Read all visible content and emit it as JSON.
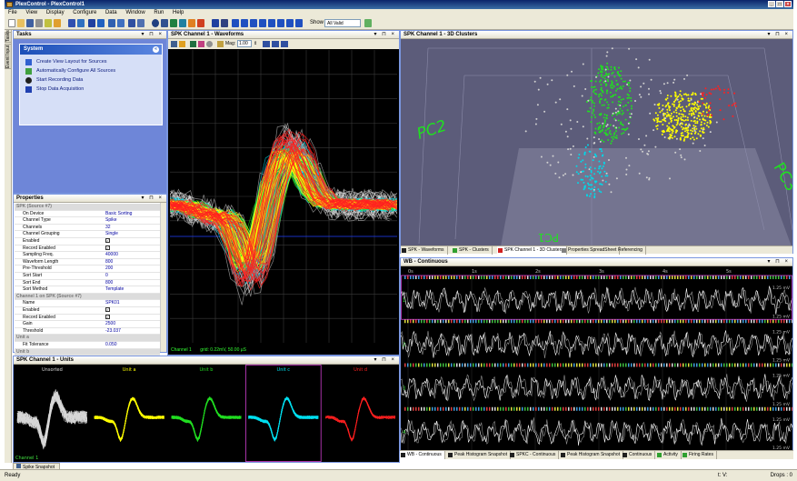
{
  "window": {
    "title": "PlexControl - PlexControl1"
  },
  "menu": [
    "File",
    "View",
    "Display",
    "Configure",
    "Data",
    "Window",
    "Run",
    "Help"
  ],
  "toolbar": {
    "show_label": "Show",
    "show_value": "All Valid"
  },
  "left_strip": {
    "tabs": [
      "Tasks",
      "Event Input"
    ]
  },
  "tasks": {
    "title": "Tasks",
    "group_title": "System",
    "items": [
      "Create View Layout for Sources",
      "Automatically Configure All Sources",
      "Start Recording Data",
      "Stop Data Acquisition"
    ]
  },
  "properties": {
    "title": "Properties",
    "rows": [
      {
        "k": "SPK (Source #7)",
        "v": "",
        "group": true
      },
      {
        "k": "On Device",
        "v": "Basic Sorting"
      },
      {
        "k": "Channel Type",
        "v": "Spike"
      },
      {
        "k": "Channels",
        "v": "32"
      },
      {
        "k": "Channel Grouping",
        "v": "Single"
      },
      {
        "k": "Enabled",
        "v": "✓",
        "check": true
      },
      {
        "k": "Record Enabled",
        "v": "✓",
        "check": true
      },
      {
        "k": "Sampling Freq.",
        "v": "40000"
      },
      {
        "k": "Waveform Length",
        "v": "800"
      },
      {
        "k": "Pre-Threshold",
        "v": "200"
      },
      {
        "k": "Sort Start",
        "v": "0"
      },
      {
        "k": "Sort End",
        "v": "800"
      },
      {
        "k": "Sort Method",
        "v": "Template"
      },
      {
        "k": "Channel 1 on SPK (Source #7)",
        "v": "",
        "group": true
      },
      {
        "k": "Name",
        "v": "SPK01"
      },
      {
        "k": "Enabled",
        "v": "✓",
        "check": true
      },
      {
        "k": "Record Enabled",
        "v": "✓",
        "check": true
      },
      {
        "k": "Gain",
        "v": "2500"
      },
      {
        "k": "Threshold",
        "v": "-23.037"
      },
      {
        "k": "Unit a",
        "v": "",
        "group": true
      },
      {
        "k": "Fit Tolerance",
        "v": "0.050"
      },
      {
        "k": "Unit b",
        "v": "",
        "group": true
      }
    ]
  },
  "waveforms": {
    "title": "SPK Channel 1 - Waveforms",
    "mag_label": "Mag:",
    "mag_value": "1.00",
    "footer_channel": "Channel 1",
    "footer_grid": "grid: 0.22mV, 50.00 µS"
  },
  "clusters": {
    "title": "SPK Channel 1 - 3D Clusters",
    "axis_pc1": "PC1",
    "axis_pc2": "PC2",
    "axis_pc3": "PC3",
    "tabs": [
      "SPK - Waveforms",
      "SPK - Clusters",
      "SPK Channel 1 - 3D Clusters",
      "Properties SpreadSheet",
      "Referencing"
    ]
  },
  "continuous": {
    "title": "WB - Continuous",
    "time_labels": [
      "0s",
      "1s",
      "2s",
      "3s",
      "4s",
      "5s"
    ],
    "scale_label": "1.25 mV",
    "channel_labels": [
      "1",
      "2",
      "3",
      "4"
    ],
    "tabs": [
      "WB - Continuous",
      "Peak Histogram Snapshot",
      "SPKC - Continuous",
      "Peak Histogram Snapshot",
      "Continuous",
      "Activity",
      "Firing Rates"
    ]
  },
  "units": {
    "title": "SPK Channel 1 - Units",
    "labels": [
      "Unsorted",
      "Unit a",
      "Unit b",
      "Unit c",
      "Unit d"
    ],
    "colors": [
      "#d8d8d8",
      "#ffff00",
      "#22dd22",
      "#00e0f0",
      "#ff2020"
    ],
    "footer": "Channel 1"
  },
  "snapshot_tab": "Spike Snapshot",
  "status": {
    "left": "Ready",
    "mid": "t:   V:",
    "right": "Drops : 0"
  }
}
